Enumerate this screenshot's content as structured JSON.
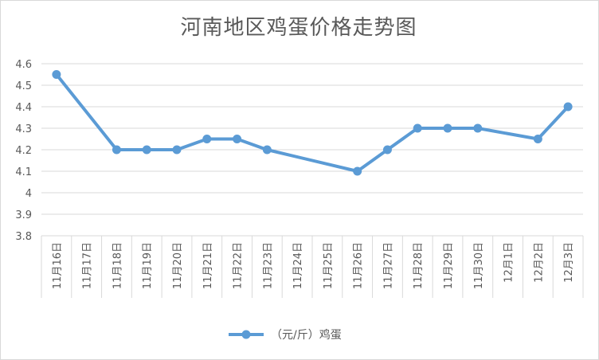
{
  "chart_data": {
    "type": "line",
    "title": "河南地区鸡蛋价格走势图",
    "categories": [
      "11月16日",
      "11月17日",
      "11月18日",
      "11月19日",
      "11月20日",
      "11月21日",
      "11月22日",
      "11月23日",
      "11月24日",
      "11月25日",
      "11月26日",
      "11月27日",
      "11月28日",
      "11月29日",
      "11月30日",
      "12月1日",
      "12月2日",
      "12月3日"
    ],
    "series": [
      {
        "name": "（元/斤）鸡蛋",
        "color": "#5b9bd5",
        "values": [
          4.55,
          null,
          4.2,
          4.2,
          4.2,
          4.25,
          4.25,
          4.2,
          null,
          null,
          4.1,
          4.2,
          4.3,
          4.3,
          4.3,
          null,
          4.25,
          4.4
        ]
      }
    ],
    "yticks": [
      "4.6",
      "4.5",
      "4.4",
      "4.3",
      "4.2",
      "4.1",
      "4",
      "3.9",
      "3.8"
    ],
    "ylim": [
      3.8,
      4.6
    ],
    "grid": true,
    "legend_position": "bottom"
  }
}
